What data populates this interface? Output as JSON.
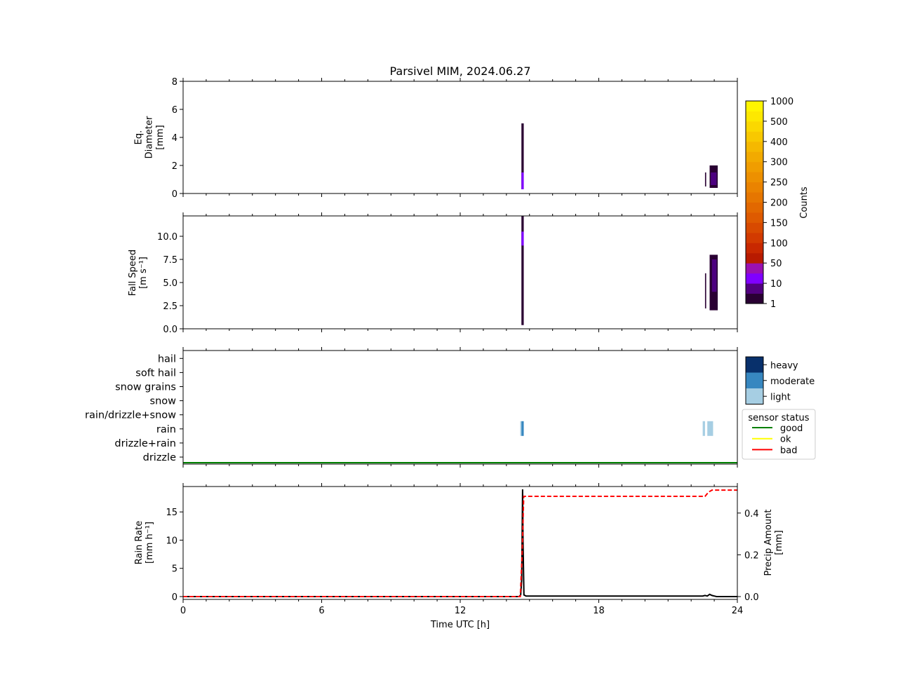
{
  "chart_data": [
    {
      "type": "heatmap",
      "title": "Parsivel MIM, 2024.06.27",
      "ylabel": "Eq.\nDiameter\n[mm]",
      "ylim": [
        0,
        8
      ],
      "yticks": [
        0,
        2,
        4,
        6,
        8
      ],
      "xlim": [
        0,
        24
      ],
      "events": [
        {
          "t_start": 14.65,
          "t_end": 14.75,
          "y_min": 0.3,
          "y_max": 5.0,
          "color": "#2a0033"
        },
        {
          "t_start": 14.65,
          "t_end": 14.75,
          "y_min": 0.3,
          "y_max": 1.5,
          "color": "#8000ff"
        },
        {
          "t_start": 22.6,
          "t_end": 22.65,
          "y_min": 0.5,
          "y_max": 1.5,
          "color": "#2a0033"
        },
        {
          "t_start": 22.8,
          "t_end": 23.15,
          "y_min": 0.4,
          "y_max": 2.0,
          "color": "#2a0033"
        },
        {
          "t_start": 22.85,
          "t_end": 23.1,
          "y_min": 0.6,
          "y_max": 1.5,
          "color": "#4d0080"
        }
      ]
    },
    {
      "type": "heatmap",
      "ylabel": "Fall Speed\n[m s⁻¹]",
      "ylim": [
        0,
        12.2
      ],
      "yticks": [
        0.0,
        2.5,
        5.0,
        7.5,
        10.0
      ],
      "yticklabels": [
        "0.0",
        "2.5",
        "5.0",
        "7.5",
        "10.0"
      ],
      "xlim": [
        0,
        24
      ],
      "events": [
        {
          "t_start": 14.65,
          "t_end": 14.75,
          "y_min": 0.4,
          "y_max": 12.2,
          "color": "#2a0033"
        },
        {
          "t_start": 14.65,
          "t_end": 14.75,
          "y_min": 9.0,
          "y_max": 10.5,
          "color": "#8000ff"
        },
        {
          "t_start": 22.6,
          "t_end": 22.65,
          "y_min": 2.2,
          "y_max": 6.0,
          "color": "#2a0033"
        },
        {
          "t_start": 22.8,
          "t_end": 23.15,
          "y_min": 2.0,
          "y_max": 8.0,
          "color": "#2a0033"
        },
        {
          "t_start": 22.9,
          "t_end": 23.1,
          "y_min": 4.0,
          "y_max": 7.5,
          "color": "#4d0080"
        }
      ],
      "colorbar": {
        "label": "Counts",
        "levels": [
          "1",
          "10",
          "50",
          "100",
          "150",
          "200",
          "250",
          "300",
          "400",
          "500",
          "1000"
        ],
        "colors": [
          "#2a0033",
          "#520080",
          "#8000ff",
          "#9a11b0",
          "#b81a00",
          "#c82800",
          "#d23a00",
          "#d84a00",
          "#de5a00",
          "#e26800",
          "#e67600",
          "#ea8300",
          "#ed9000",
          "#f09d00",
          "#f2aa00",
          "#f5b800",
          "#f8c800",
          "#fbd800",
          "#fde800",
          "#fff500"
        ]
      }
    },
    {
      "type": "table",
      "categories": [
        "drizzle",
        "drizzle+rain",
        "rain",
        "rain/drizzle+snow",
        "snow",
        "snow grains",
        "soft hail",
        "hail"
      ],
      "xlim": [
        0,
        24
      ],
      "intensity_colors": {
        "light": "#a6cee3",
        "moderate": "#3787c0",
        "heavy": "#08306b"
      },
      "events": [
        {
          "category": "rain",
          "t_start": 14.6,
          "t_end": 14.65,
          "intensity": "light"
        },
        {
          "category": "rain",
          "t_start": 14.65,
          "t_end": 14.75,
          "intensity": "moderate"
        },
        {
          "category": "rain",
          "t_start": 22.5,
          "t_end": 22.6,
          "intensity": "light"
        },
        {
          "category": "rain",
          "t_start": 22.7,
          "t_end": 22.95,
          "intensity": "light"
        }
      ],
      "intensity_legend": [
        "heavy",
        "moderate",
        "light"
      ],
      "status_legend": {
        "title": "sensor status",
        "entries": [
          {
            "label": "good",
            "color": "#008000"
          },
          {
            "label": "ok",
            "color": "#ffff00"
          },
          {
            "label": "bad",
            "color": "#ff0000"
          }
        ]
      },
      "status_series": [
        {
          "status": "good",
          "t_start": 0,
          "t_end": 24
        }
      ]
    },
    {
      "type": "line",
      "xlabel": "Time UTC [h]",
      "ylabel": "Rain Rate\n[mm h⁻¹]",
      "ylim": [
        -0.5,
        19.5
      ],
      "yticks": [
        0,
        5,
        10,
        15
      ],
      "y2label": "Precip Amount\n[mm]",
      "y2lim": [
        -0.0135,
        0.527
      ],
      "y2ticks": [
        0.0,
        0.2,
        0.4
      ],
      "y2ticklabels": [
        "0.0",
        "0.2",
        "0.4"
      ],
      "xlim": [
        0,
        24
      ],
      "xticks": [
        0,
        6,
        12,
        18,
        24
      ],
      "series": [
        {
          "axis": "left",
          "color": "#000000",
          "style": "solid",
          "x": [
            0,
            14.55,
            14.62,
            14.66,
            14.7,
            14.72,
            14.76,
            14.85,
            22.5,
            22.6,
            22.7,
            22.8,
            22.9,
            23.0,
            23.1,
            24
          ],
          "y": [
            0,
            0,
            0.3,
            3.0,
            19.0,
            10.0,
            0.3,
            0.1,
            0.1,
            0.2,
            0.1,
            0.4,
            0.2,
            0.1,
            0.0,
            0.0
          ]
        },
        {
          "axis": "right",
          "color": "#ff0000",
          "style": "dashed",
          "x": [
            0,
            14.6,
            14.68,
            14.75,
            22.6,
            22.75,
            22.9,
            24
          ],
          "y": [
            0.0,
            0.0,
            0.2,
            0.48,
            0.48,
            0.5,
            0.51,
            0.51
          ]
        }
      ]
    }
  ]
}
